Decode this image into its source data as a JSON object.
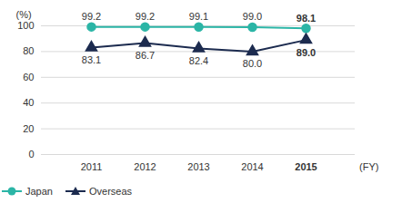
{
  "chart_data": {
    "type": "line",
    "y_label": "(%)",
    "x_label": "(FY)",
    "categories": [
      "2011",
      "2012",
      "2013",
      "2014",
      "2015"
    ],
    "series": [
      {
        "name": "Japan",
        "color": "#2bb5a6",
        "marker": "circle",
        "values": [
          99.2,
          99.2,
          99.1,
          99.0,
          98.1
        ],
        "value_labels": [
          "99.2",
          "99.2",
          "99.1",
          "99.0",
          "98.1"
        ]
      },
      {
        "name": "Overseas",
        "color": "#1c2b4f",
        "marker": "triangle",
        "values": [
          83.1,
          86.7,
          82.4,
          80.0,
          89.0
        ],
        "value_labels": [
          "83.1",
          "86.7",
          "82.4",
          "80.0",
          "89.0"
        ]
      }
    ],
    "ylim": [
      0,
      100
    ],
    "yticks": [
      0,
      20,
      40,
      60,
      80,
      100
    ],
    "grid": true,
    "data_labels": true,
    "legend": "bottom-left"
  }
}
